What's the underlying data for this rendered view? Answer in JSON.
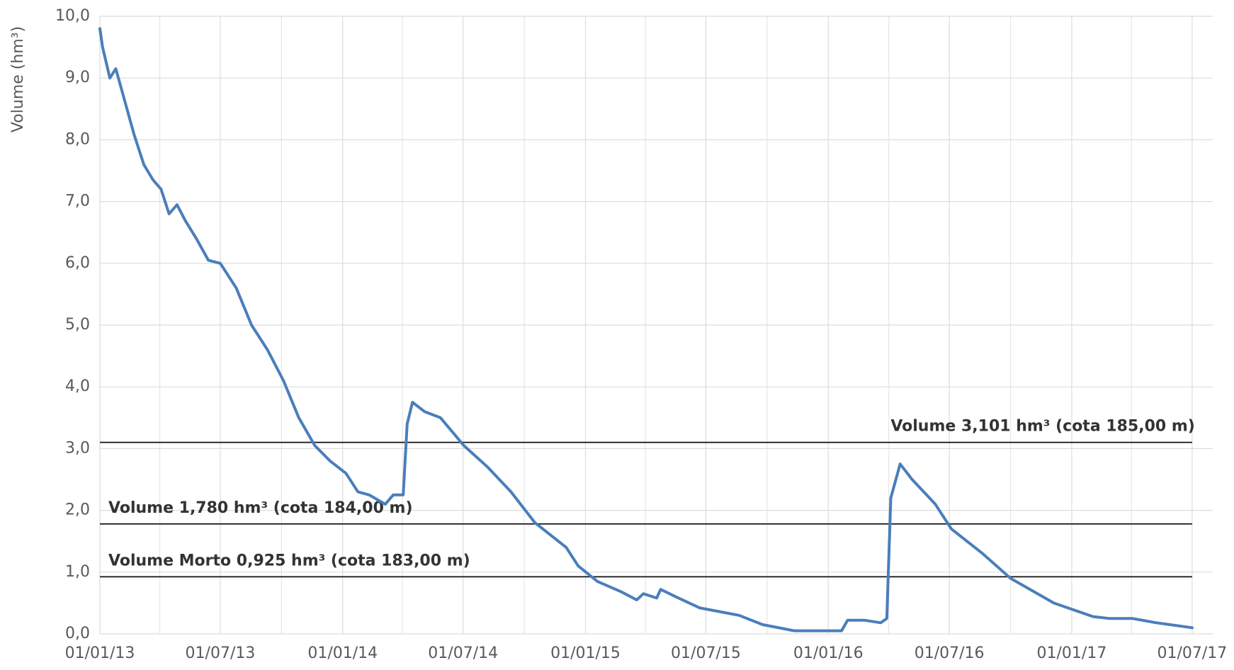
{
  "chart_data": {
    "type": "line",
    "y_label": "Volume (hm³)",
    "x": [
      "2013-01-01",
      "2013-01-05",
      "2013-01-16",
      "2013-01-25",
      "2013-02-03",
      "2013-02-21",
      "2013-03-08",
      "2013-03-22",
      "2013-04-03",
      "2013-04-15",
      "2013-04-27",
      "2013-05-09",
      "2013-05-26",
      "2013-06-13",
      "2013-07-01",
      "2013-07-25",
      "2013-08-17",
      "2013-09-10",
      "2013-10-04",
      "2013-10-27",
      "2013-11-20",
      "2013-12-13",
      "2014-01-06",
      "2014-01-24",
      "2014-02-10",
      "2014-03-06",
      "2014-03-18",
      "2014-04-02",
      "2014-04-08",
      "2014-04-16",
      "2014-05-04",
      "2014-05-28",
      "2014-07-02",
      "2014-08-07",
      "2014-09-11",
      "2014-10-17",
      "2014-12-03",
      "2014-12-21",
      "2015-01-19",
      "2015-02-24",
      "2015-03-19",
      "2015-03-29",
      "2015-04-18",
      "2015-04-24",
      "2015-05-17",
      "2015-06-22",
      "2015-08-20",
      "2015-09-24",
      "2015-11-11",
      "2016-01-21",
      "2016-01-30",
      "2016-02-25",
      "2016-03-20",
      "2016-03-29",
      "2016-04-04",
      "2016-04-18",
      "2016-05-06",
      "2016-06-10",
      "2016-07-04",
      "2016-08-20",
      "2016-10-01",
      "2016-12-05",
      "2017-02-02",
      "2017-02-26",
      "2017-04-02",
      "2017-05-08",
      "2017-07-01"
    ],
    "series": [
      {
        "name": "Volume",
        "color": "#4a7ebb",
        "values": [
          9.8,
          9.5,
          9.0,
          9.15,
          8.8,
          8.1,
          7.6,
          7.35,
          7.2,
          6.8,
          6.95,
          6.7,
          6.4,
          6.05,
          6.0,
          5.6,
          5.0,
          4.6,
          4.1,
          3.5,
          3.05,
          2.8,
          2.6,
          2.3,
          2.25,
          2.1,
          2.25,
          2.25,
          3.4,
          3.75,
          3.6,
          3.5,
          3.05,
          2.7,
          2.3,
          1.8,
          1.4,
          1.1,
          0.85,
          0.68,
          0.55,
          0.65,
          0.58,
          0.72,
          0.6,
          0.42,
          0.3,
          0.15,
          0.05,
          0.05,
          0.22,
          0.22,
          0.18,
          0.25,
          2.2,
          2.75,
          2.5,
          2.1,
          1.7,
          1.3,
          0.9,
          0.5,
          0.28,
          0.25,
          0.25,
          0.18,
          0.1
        ]
      }
    ],
    "xlim": [
      "2013-01-01",
      "2017-08-01"
    ],
    "xticks": [
      {
        "value": "2013-01-01",
        "label": "01/01/13"
      },
      {
        "value": "2013-07-01",
        "label": "01/07/13"
      },
      {
        "value": "2014-01-01",
        "label": "01/01/14"
      },
      {
        "value": "2014-07-01",
        "label": "01/07/14"
      },
      {
        "value": "2015-01-01",
        "label": "01/01/15"
      },
      {
        "value": "2015-07-01",
        "label": "01/07/15"
      },
      {
        "value": "2016-01-01",
        "label": "01/01/16"
      },
      {
        "value": "2016-07-01",
        "label": "01/07/16"
      },
      {
        "value": "2017-01-01",
        "label": "01/01/17"
      },
      {
        "value": "2017-07-01",
        "label": "01/07/17"
      }
    ],
    "xminor": [
      "2013-04-01",
      "2013-10-01",
      "2014-04-01",
      "2014-10-01",
      "2015-04-01",
      "2015-10-01",
      "2016-04-01",
      "2016-10-01",
      "2017-04-01"
    ],
    "ylim": [
      0,
      10
    ],
    "yticks": [
      {
        "value": 0,
        "label": "0,0"
      },
      {
        "value": 1,
        "label": "1,0"
      },
      {
        "value": 2,
        "label": "2,0"
      },
      {
        "value": 3,
        "label": "3,0"
      },
      {
        "value": 4,
        "label": "4,0"
      },
      {
        "value": 5,
        "label": "5,0"
      },
      {
        "value": 6,
        "label": "6,0"
      },
      {
        "value": 7,
        "label": "7,0"
      },
      {
        "value": 8,
        "label": "8,0"
      },
      {
        "value": 9,
        "label": "9,0"
      },
      {
        "value": 10,
        "label": "10,0"
      }
    ],
    "grid": true,
    "reference_lines": [
      {
        "value": 3.101,
        "label": "Volume 3,101 hm³ (cota 185,00 m)",
        "end": "2017-07-01"
      },
      {
        "value": 1.78,
        "label": "Volume 1,780 hm³ (cota 184,00 m)",
        "end": "2017-07-01"
      },
      {
        "value": 0.925,
        "label": "Volume Morto 0,925 hm³ (cota 183,00 m)",
        "end": "2017-07-01"
      }
    ]
  }
}
